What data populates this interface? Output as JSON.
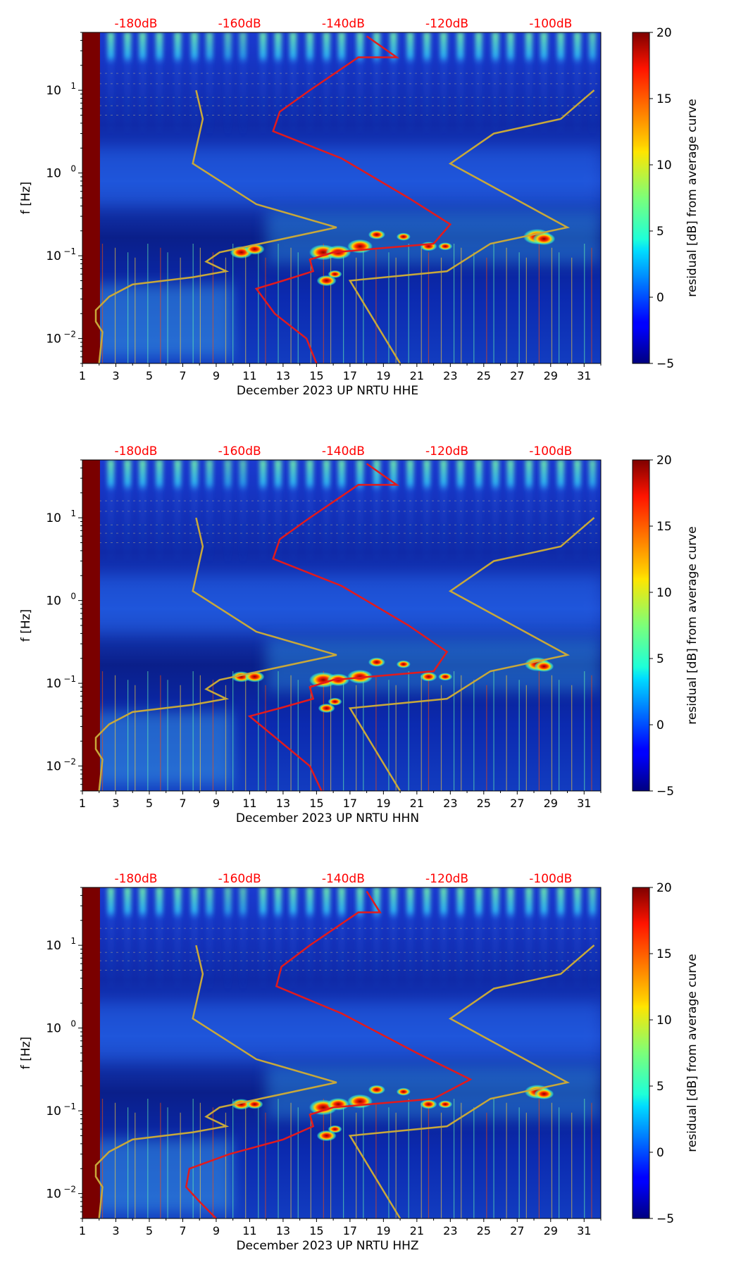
{
  "chart_data": [
    {
      "type": "heatmap",
      "title": "",
      "xlabel": "December 2023 UP NRTU  HHE",
      "ylabel": "f [Hz]",
      "xlim": [
        1,
        32
      ],
      "ylim": [
        0.005,
        50
      ],
      "yscale": "log",
      "x_ticks": [
        "1",
        "3",
        "5",
        "7",
        "9",
        "11",
        "13",
        "15",
        "17",
        "19",
        "21",
        "23",
        "25",
        "27",
        "29",
        "31"
      ],
      "y_ticks": [
        {
          "value": 0.01,
          "base": "10",
          "exp": "−2"
        },
        {
          "value": 0.1,
          "base": "10",
          "exp": "−1"
        },
        {
          "value": 1,
          "base": "10",
          "exp": "0"
        },
        {
          "value": 10,
          "base": "10",
          "exp": "1"
        }
      ],
      "top_db_ticks": [
        {
          "x": 4.2,
          "label": "-180dB"
        },
        {
          "x": 10.4,
          "label": "-160dB"
        },
        {
          "x": 16.6,
          "label": "-140dB"
        },
        {
          "x": 22.8,
          "label": "-120dB"
        },
        {
          "x": 29.0,
          "label": "-100dB"
        }
      ],
      "colorbar": {
        "label": "residual [dB] from average curve",
        "range": [
          -5,
          20
        ],
        "ticks": [
          "−5",
          "0",
          "5",
          "10",
          "15",
          "20"
        ]
      },
      "noise_model_low": [
        [
          2.0,
          0.005
        ],
        [
          2.2,
          0.012
        ],
        [
          1.8,
          0.016
        ],
        [
          1.8,
          0.022
        ],
        [
          2.6,
          0.032
        ],
        [
          4.0,
          0.045
        ],
        [
          7.6,
          0.055
        ],
        [
          9.6,
          0.065
        ],
        [
          8.4,
          0.085
        ],
        [
          9.2,
          0.11
        ],
        [
          16.2,
          0.22
        ],
        [
          11.4,
          0.42
        ],
        [
          7.6,
          1.3
        ],
        [
          8.2,
          4.5
        ],
        [
          7.8,
          10
        ]
      ],
      "noise_model_high": [
        [
          20.0,
          0.005
        ],
        [
          17.0,
          0.05
        ],
        [
          22.8,
          0.065
        ],
        [
          25.4,
          0.14
        ],
        [
          30.0,
          0.22
        ],
        [
          23.0,
          1.3
        ],
        [
          25.6,
          3.0
        ],
        [
          29.6,
          4.5
        ],
        [
          31.6,
          10
        ]
      ],
      "psd_median": [
        [
          15.0,
          0.005
        ],
        [
          14.4,
          0.01
        ],
        [
          12.5,
          0.02
        ],
        [
          11.4,
          0.04
        ],
        [
          13.0,
          0.05
        ],
        [
          14.8,
          0.065
        ],
        [
          14.6,
          0.09
        ],
        [
          16.0,
          0.11
        ],
        [
          22.0,
          0.14
        ],
        [
          23.0,
          0.24
        ],
        [
          20.5,
          0.5
        ],
        [
          16.5,
          1.5
        ],
        [
          12.4,
          3.2
        ],
        [
          12.8,
          5.5
        ],
        [
          14.6,
          10
        ],
        [
          17.5,
          25
        ],
        [
          19.8,
          25
        ],
        [
          18.0,
          45
        ]
      ],
      "background_events": [
        [
          2.7,
          1
        ],
        [
          3.7,
          1
        ],
        [
          4.6,
          1
        ],
        [
          5.6,
          1
        ],
        [
          6.7,
          1
        ],
        [
          7.7,
          1
        ],
        [
          8.6,
          0.9
        ],
        [
          9.7,
          0.8
        ],
        [
          10.6,
          0.8
        ],
        [
          11.8,
          1
        ],
        [
          12.7,
          1
        ],
        [
          13.6,
          1
        ],
        [
          14.6,
          1
        ],
        [
          15.6,
          1
        ],
        [
          16.5,
          1
        ],
        [
          17.6,
          1
        ],
        [
          18.6,
          1
        ],
        [
          19.6,
          1
        ],
        [
          20.6,
          1
        ],
        [
          21.6,
          1
        ],
        [
          22.6,
          1
        ],
        [
          23.6,
          1
        ],
        [
          24.7,
          1
        ],
        [
          25.7,
          1
        ],
        [
          26.6,
          1
        ],
        [
          27.7,
          1
        ],
        [
          28.6,
          1
        ],
        [
          29.6,
          1
        ],
        [
          30.6,
          1
        ],
        [
          31.5,
          0.9
        ]
      ],
      "hotspots": [
        [
          10.5,
          0.11,
          0.8
        ],
        [
          11.3,
          0.12,
          0.7
        ],
        [
          15.4,
          0.11,
          1.0
        ],
        [
          16.3,
          0.11,
          0.9
        ],
        [
          17.6,
          0.13,
          0.9
        ],
        [
          18.6,
          0.18,
          0.6
        ],
        [
          20.2,
          0.17,
          0.5
        ],
        [
          21.7,
          0.13,
          0.6
        ],
        [
          22.7,
          0.13,
          0.5
        ],
        [
          28.2,
          0.17,
          1.0
        ],
        [
          28.6,
          0.16,
          0.8
        ],
        [
          15.6,
          0.05,
          0.7
        ],
        [
          16.1,
          0.06,
          0.5
        ]
      ]
    },
    {
      "type": "heatmap",
      "title": "",
      "xlabel": "December 2023 UP NRTU  HHN",
      "ylabel": "f [Hz]",
      "xlim": [
        1,
        32
      ],
      "ylim": [
        0.005,
        50
      ],
      "yscale": "log",
      "x_ticks": [
        "1",
        "3",
        "5",
        "7",
        "9",
        "11",
        "13",
        "15",
        "17",
        "19",
        "21",
        "23",
        "25",
        "27",
        "29",
        "31"
      ],
      "y_ticks": [
        {
          "value": 0.01,
          "base": "10",
          "exp": "−2"
        },
        {
          "value": 0.1,
          "base": "10",
          "exp": "−1"
        },
        {
          "value": 1,
          "base": "10",
          "exp": "0"
        },
        {
          "value": 10,
          "base": "10",
          "exp": "1"
        }
      ],
      "top_db_ticks": [
        {
          "x": 4.2,
          "label": "-180dB"
        },
        {
          "x": 10.4,
          "label": "-160dB"
        },
        {
          "x": 16.6,
          "label": "-140dB"
        },
        {
          "x": 22.8,
          "label": "-120dB"
        },
        {
          "x": 29.0,
          "label": "-100dB"
        }
      ],
      "colorbar": {
        "label": "residual [dB] from average curve",
        "range": [
          -5,
          20
        ],
        "ticks": [
          "−5",
          "0",
          "5",
          "10",
          "15",
          "20"
        ]
      },
      "noise_model_low": [
        [
          2.0,
          0.005
        ],
        [
          2.2,
          0.012
        ],
        [
          1.8,
          0.016
        ],
        [
          1.8,
          0.022
        ],
        [
          2.6,
          0.032
        ],
        [
          4.0,
          0.045
        ],
        [
          7.6,
          0.055
        ],
        [
          9.6,
          0.065
        ],
        [
          8.4,
          0.085
        ],
        [
          9.2,
          0.11
        ],
        [
          16.2,
          0.22
        ],
        [
          11.4,
          0.42
        ],
        [
          7.6,
          1.3
        ],
        [
          8.2,
          4.5
        ],
        [
          7.8,
          10
        ]
      ],
      "noise_model_high": [
        [
          20.0,
          0.005
        ],
        [
          17.0,
          0.05
        ],
        [
          22.8,
          0.065
        ],
        [
          25.4,
          0.14
        ],
        [
          30.0,
          0.22
        ],
        [
          23.0,
          1.3
        ],
        [
          25.6,
          3.0
        ],
        [
          29.6,
          4.5
        ],
        [
          31.6,
          10
        ]
      ],
      "psd_median": [
        [
          15.3,
          0.005
        ],
        [
          14.6,
          0.01
        ],
        [
          12.8,
          0.02
        ],
        [
          11.0,
          0.04
        ],
        [
          12.8,
          0.05
        ],
        [
          14.8,
          0.065
        ],
        [
          14.6,
          0.09
        ],
        [
          16.0,
          0.11
        ],
        [
          22.0,
          0.14
        ],
        [
          22.8,
          0.24
        ],
        [
          20.5,
          0.5
        ],
        [
          16.5,
          1.5
        ],
        [
          12.4,
          3.2
        ],
        [
          12.8,
          5.5
        ],
        [
          14.6,
          10
        ],
        [
          17.5,
          25
        ],
        [
          19.8,
          25
        ],
        [
          18.0,
          45
        ]
      ],
      "background_events": [
        [
          2.7,
          1
        ],
        [
          3.7,
          1
        ],
        [
          4.6,
          1
        ],
        [
          5.6,
          1
        ],
        [
          6.7,
          1
        ],
        [
          7.7,
          1
        ],
        [
          8.6,
          0.9
        ],
        [
          9.7,
          0.8
        ],
        [
          10.6,
          0.8
        ],
        [
          11.8,
          1
        ],
        [
          12.7,
          1
        ],
        [
          13.6,
          1
        ],
        [
          14.6,
          1
        ],
        [
          15.6,
          1
        ],
        [
          16.5,
          1
        ],
        [
          17.6,
          1
        ],
        [
          18.6,
          1
        ],
        [
          19.6,
          1
        ],
        [
          20.6,
          1
        ],
        [
          21.6,
          1
        ],
        [
          22.6,
          1
        ],
        [
          23.6,
          1
        ],
        [
          24.7,
          1
        ],
        [
          25.7,
          1
        ],
        [
          26.6,
          1
        ],
        [
          27.7,
          1
        ],
        [
          28.6,
          1
        ],
        [
          29.6,
          1
        ],
        [
          30.6,
          1
        ],
        [
          31.5,
          0.9
        ]
      ],
      "hotspots": [
        [
          10.5,
          0.12,
          0.7
        ],
        [
          11.3,
          0.12,
          0.7
        ],
        [
          15.4,
          0.11,
          1.0
        ],
        [
          16.3,
          0.11,
          0.8
        ],
        [
          17.6,
          0.12,
          0.9
        ],
        [
          18.6,
          0.18,
          0.6
        ],
        [
          20.2,
          0.17,
          0.5
        ],
        [
          21.7,
          0.12,
          0.6
        ],
        [
          22.7,
          0.12,
          0.5
        ],
        [
          28.2,
          0.17,
          0.9
        ],
        [
          28.6,
          0.16,
          0.7
        ],
        [
          15.6,
          0.05,
          0.6
        ],
        [
          16.1,
          0.06,
          0.5
        ]
      ]
    },
    {
      "type": "heatmap",
      "title": "",
      "xlabel": "December 2023 UP NRTU  HHZ",
      "ylabel": "f [Hz]",
      "xlim": [
        1,
        32
      ],
      "ylim": [
        0.005,
        50
      ],
      "yscale": "log",
      "x_ticks": [
        "1",
        "3",
        "5",
        "7",
        "9",
        "11",
        "13",
        "15",
        "17",
        "19",
        "21",
        "23",
        "25",
        "27",
        "29",
        "31"
      ],
      "y_ticks": [
        {
          "value": 0.01,
          "base": "10",
          "exp": "−2"
        },
        {
          "value": 0.1,
          "base": "10",
          "exp": "−1"
        },
        {
          "value": 1,
          "base": "10",
          "exp": "0"
        },
        {
          "value": 10,
          "base": "10",
          "exp": "1"
        }
      ],
      "top_db_ticks": [
        {
          "x": 4.2,
          "label": "-180dB"
        },
        {
          "x": 10.4,
          "label": "-160dB"
        },
        {
          "x": 16.6,
          "label": "-140dB"
        },
        {
          "x": 22.8,
          "label": "-120dB"
        },
        {
          "x": 29.0,
          "label": "-100dB"
        }
      ],
      "colorbar": {
        "label": "residual [dB] from average curve",
        "range": [
          -5,
          20
        ],
        "ticks": [
          "−5",
          "0",
          "5",
          "10",
          "15",
          "20"
        ]
      },
      "noise_model_low": [
        [
          2.0,
          0.005
        ],
        [
          2.2,
          0.012
        ],
        [
          1.8,
          0.016
        ],
        [
          1.8,
          0.022
        ],
        [
          2.6,
          0.032
        ],
        [
          4.0,
          0.045
        ],
        [
          7.6,
          0.055
        ],
        [
          9.6,
          0.065
        ],
        [
          8.4,
          0.085
        ],
        [
          9.2,
          0.11
        ],
        [
          16.2,
          0.22
        ],
        [
          11.4,
          0.42
        ],
        [
          7.6,
          1.3
        ],
        [
          8.2,
          4.5
        ],
        [
          7.8,
          10
        ]
      ],
      "noise_model_high": [
        [
          20.0,
          0.005
        ],
        [
          17.0,
          0.05
        ],
        [
          22.8,
          0.065
        ],
        [
          25.4,
          0.14
        ],
        [
          30.0,
          0.22
        ],
        [
          23.0,
          1.3
        ],
        [
          25.6,
          3.0
        ],
        [
          29.6,
          4.5
        ],
        [
          31.6,
          10
        ]
      ],
      "psd_median": [
        [
          9.0,
          0.005
        ],
        [
          8.0,
          0.008
        ],
        [
          7.2,
          0.012
        ],
        [
          7.4,
          0.02
        ],
        [
          9.8,
          0.03
        ],
        [
          13.0,
          0.045
        ],
        [
          14.8,
          0.065
        ],
        [
          14.6,
          0.09
        ],
        [
          16.0,
          0.11
        ],
        [
          22.0,
          0.14
        ],
        [
          24.2,
          0.24
        ],
        [
          21.0,
          0.5
        ],
        [
          16.5,
          1.5
        ],
        [
          12.6,
          3.2
        ],
        [
          12.9,
          5.5
        ],
        [
          14.6,
          10
        ],
        [
          17.5,
          25
        ],
        [
          18.8,
          25
        ],
        [
          18.0,
          45
        ]
      ],
      "background_events": [
        [
          2.7,
          1
        ],
        [
          3.7,
          1
        ],
        [
          4.6,
          1
        ],
        [
          5.6,
          1
        ],
        [
          6.7,
          1
        ],
        [
          7.7,
          1
        ],
        [
          8.6,
          0.9
        ],
        [
          9.7,
          0.8
        ],
        [
          10.6,
          0.8
        ],
        [
          11.8,
          1
        ],
        [
          12.7,
          1
        ],
        [
          13.6,
          1
        ],
        [
          14.6,
          1
        ],
        [
          15.6,
          1
        ],
        [
          16.5,
          1
        ],
        [
          17.6,
          1
        ],
        [
          18.6,
          1
        ],
        [
          19.6,
          1
        ],
        [
          20.6,
          1
        ],
        [
          21.6,
          1
        ],
        [
          22.6,
          1
        ],
        [
          23.6,
          1
        ],
        [
          24.7,
          1
        ],
        [
          25.7,
          1
        ],
        [
          26.6,
          1
        ],
        [
          27.7,
          1
        ],
        [
          28.6,
          1
        ],
        [
          29.6,
          1
        ],
        [
          30.6,
          1
        ],
        [
          31.5,
          0.9
        ]
      ],
      "hotspots": [
        [
          10.5,
          0.12,
          0.7
        ],
        [
          11.3,
          0.12,
          0.6
        ],
        [
          15.4,
          0.11,
          1.0
        ],
        [
          16.3,
          0.12,
          0.8
        ],
        [
          17.6,
          0.13,
          0.9
        ],
        [
          18.6,
          0.18,
          0.6
        ],
        [
          20.2,
          0.17,
          0.5
        ],
        [
          21.7,
          0.12,
          0.6
        ],
        [
          22.7,
          0.12,
          0.5
        ],
        [
          28.2,
          0.17,
          0.9
        ],
        [
          28.6,
          0.16,
          0.7
        ],
        [
          15.6,
          0.05,
          0.7
        ],
        [
          16.1,
          0.06,
          0.5
        ]
      ]
    }
  ],
  "colors": {
    "psd_line": "#e31a1c",
    "noise_model": "#c8a83a",
    "top_label": "#ff0000",
    "gap_column": "#7a0000",
    "background": "#0a2a9c"
  }
}
